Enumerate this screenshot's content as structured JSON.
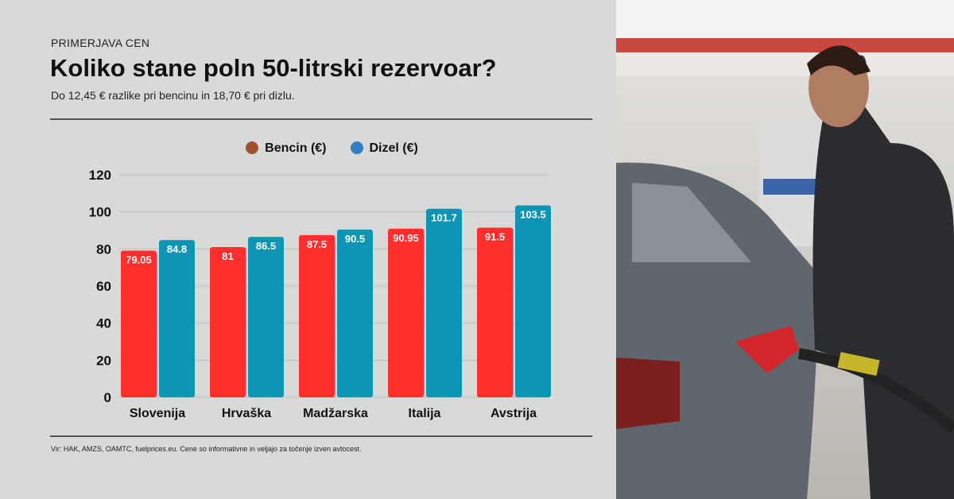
{
  "header": {
    "kicker": "PRIMERJAVA CEN",
    "title": "Koliko stane poln 50-litrski rezervoar?",
    "subtitle": "Do 12,45 € razlike pri bencinu in 18,70 € pri dizlu."
  },
  "source": "Vir: HAK, AMZS, OAMTC, fuelprices.eu. Cene so informativne in veljajo za točenje izven avtocest.",
  "chart_data": {
    "type": "bar",
    "categories": [
      "Slovenija",
      "Hrvaška",
      "Madžarska",
      "Italija",
      "Avstrija"
    ],
    "series": [
      {
        "name": "Bencin (€)",
        "color": "#ff2d2d",
        "values": [
          79.05,
          81,
          87.5,
          90.95,
          91.5
        ],
        "labels": [
          "79.05",
          "81",
          "87.5",
          "90.95",
          "91.5"
        ]
      },
      {
        "name": "Dizel (€)",
        "color": "#0e95b3",
        "values": [
          84.8,
          86.5,
          90.5,
          101.7,
          103.5
        ],
        "labels": [
          "84.8",
          "86.5",
          "90.5",
          "101.7",
          "103.5"
        ]
      }
    ],
    "yticks": [
      "0",
      "20",
      "40",
      "60",
      "80",
      "100",
      "120"
    ],
    "ylim": [
      0,
      120
    ],
    "grid": true,
    "legend": "top-center"
  },
  "legend_colors": [
    "#a0522d",
    "#2f7fc0"
  ]
}
